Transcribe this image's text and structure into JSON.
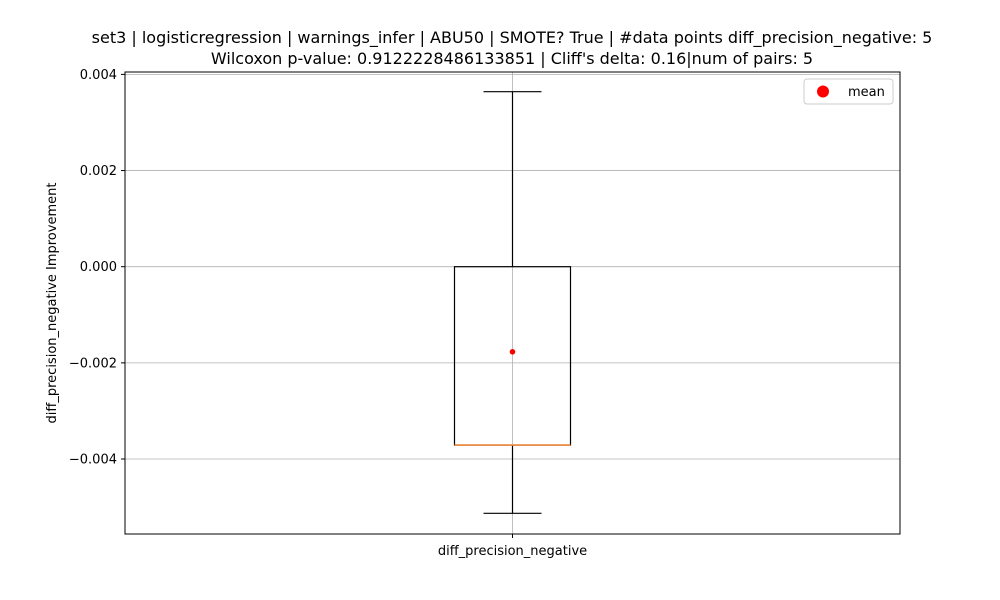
{
  "chart_data": {
    "type": "box",
    "title_line1": "set3 | logisticregression | warnings_infer | ABU50 | SMOTE? True | #data points diff_precision_negative: 5",
    "title_line2": "Wilcoxon p-value: 0.9122228486133851 | Cliff's delta: 0.16|num of pairs: 5",
    "xlabel": "",
    "ylabel": "diff_precision_negative Improvement",
    "categories": [
      "diff_precision_negative"
    ],
    "box": {
      "whisker_low": -0.00513,
      "q1": -0.00371,
      "median": -0.00371,
      "q3": 0.0,
      "whisker_high": 0.00364,
      "mean": -0.00177
    },
    "ylim": [
      -0.00556,
      0.00405
    ],
    "yticks": [
      -0.004,
      -0.002,
      0.0,
      0.002,
      0.004
    ],
    "ytick_labels": [
      "−0.004",
      "−0.002",
      "0.000",
      "0.002",
      "0.004"
    ],
    "grid": true,
    "legend": {
      "position": "top-right",
      "entries": [
        {
          "label": "mean",
          "color": "#ff0000",
          "marker": "circle"
        }
      ]
    },
    "colors": {
      "box": "#000000",
      "median": "#ef8a3c",
      "mean": "#ff0000",
      "grid": "#b0b0b0"
    }
  }
}
